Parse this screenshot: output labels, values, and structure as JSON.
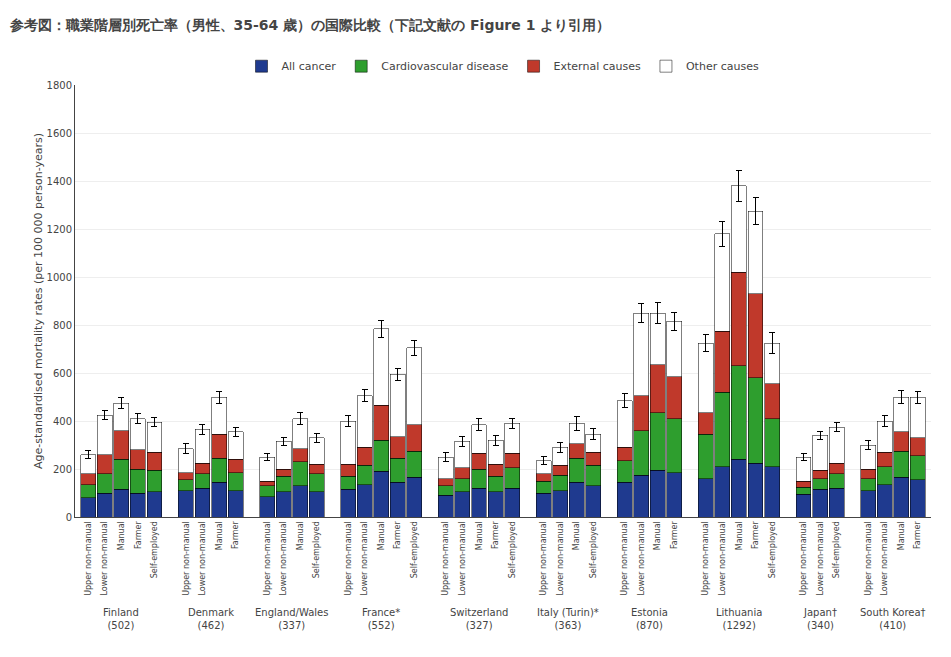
{
  "chart_data": {
    "type": "bar",
    "stacked": true,
    "title": "参考図：職業階層別死亡率（男性、35-64 歳）の国際比較（下記文献の Figure 1 より引用）",
    "ylabel": "Age-standardised mortality rates (per 100 000 person-years)",
    "groups": [
      {
        "name": "Finland",
        "label": "(502)",
        "categories": [
          "Upper non-manual",
          "Lower non-manual",
          "Manual",
          "Farmer",
          "Self-employed"
        ]
      },
      {
        "name": "Denmark",
        "label": "(462)",
        "categories": [
          "Upper non-manual",
          "Lower non-manual",
          "Manual",
          "Farmer"
        ]
      },
      {
        "name": "England/Wales",
        "label": "(337)",
        "categories": [
          "Upper non-manual",
          "Lower non-manual",
          "Manual",
          "Self-employed"
        ]
      },
      {
        "name": "France*",
        "label": "(552)",
        "categories": [
          "Upper non-manual",
          "Lower non-manual",
          "Manual",
          "Farmer",
          "Self-employed"
        ]
      },
      {
        "name": "Switzerland",
        "label": "(327)",
        "categories": [
          "Upper non-manual",
          "Lower non-manual",
          "Manual",
          "Farmer",
          "Self-employed"
        ]
      },
      {
        "name": "Italy (Turin)*",
        "label": "(363)",
        "categories": [
          "Upper non-manual",
          "Lower non-manual",
          "Manual",
          "Self-employed"
        ]
      },
      {
        "name": "Estonia",
        "label": "(870)",
        "categories": [
          "Upper non-manual",
          "Lower non-manual",
          "Manual",
          "Farmer"
        ]
      },
      {
        "name": "Lithuania",
        "label": "(1292)",
        "categories": [
          "Upper non-manual",
          "Lower non-manual",
          "Manual",
          "Farmer",
          "Self-employed"
        ]
      },
      {
        "name": "Japan†",
        "label": "(340)",
        "categories": [
          "Upper non-manual",
          "Lower non-manual",
          "Self-employed"
        ]
      },
      {
        "name": "South Korea†",
        "label": "(410)",
        "categories": [
          "Upper non-manual",
          "Lower non-manual",
          "Manual",
          "Farmer"
        ]
      }
    ],
    "series": [
      {
        "name": "All cancer",
        "color": "#1f3a8f",
        "values": [
          80,
          100,
          115,
          100,
          105,
          110,
          120,
          145,
          110,
          85,
          105,
          130,
          105,
          115,
          135,
          190,
          145,
          165,
          90,
          105,
          120,
          105,
          120,
          100,
          110,
          145,
          130,
          145,
          175,
          195,
          185,
          160,
          210,
          240,
          225,
          210,
          95,
          115,
          120,
          110,
          135,
          165,
          155
        ]
      },
      {
        "name": "Cardiovascular disease",
        "color": "#2e9e2e",
        "values": [
          55,
          80,
          125,
          100,
          90,
          45,
          60,
          100,
          75,
          45,
          65,
          100,
          75,
          55,
          80,
          130,
          100,
          110,
          40,
          55,
          80,
          65,
          85,
          50,
          65,
          100,
          85,
          90,
          185,
          240,
          225,
          185,
          310,
          390,
          355,
          200,
          30,
          45,
          60,
          50,
          75,
          110,
          100
        ]
      },
      {
        "name": "External causes",
        "color": "#c0392b",
        "values": [
          45,
          80,
          120,
          80,
          75,
          30,
          45,
          100,
          55,
          20,
          30,
          55,
          40,
          50,
          75,
          145,
          90,
          110,
          30,
          45,
          65,
          50,
          60,
          30,
          40,
          60,
          55,
          55,
          145,
          200,
          175,
          90,
          255,
          390,
          350,
          145,
          25,
          35,
          45,
          40,
          60,
          80,
          75
        ]
      },
      {
        "name": "Other causes",
        "color": "#ffffff",
        "values": [
          80,
          165,
          115,
          130,
          125,
          100,
          140,
          155,
          115,
          100,
          115,
          125,
          110,
          180,
          215,
          320,
          260,
          320,
          90,
          110,
          120,
          100,
          125,
          55,
          75,
          85,
          75,
          195,
          345,
          215,
          230,
          290,
          405,
          360,
          345,
          170,
          100,
          145,
          150,
          100,
          130,
          145,
          170
        ]
      }
    ],
    "errors": [
      18,
      20,
      22,
      20,
      18,
      20,
      22,
      25,
      18,
      15,
      18,
      25,
      18,
      22,
      25,
      35,
      25,
      30,
      18,
      20,
      25,
      20,
      22,
      18,
      22,
      30,
      22,
      30,
      40,
      42,
      38,
      35,
      52,
      65,
      58,
      42,
      15,
      18,
      20,
      18,
      22,
      28,
      25
    ],
    "ylim": [
      0,
      1800
    ],
    "yticks": [
      0,
      200,
      400,
      600,
      800,
      1000,
      1200,
      1400,
      1600,
      1800
    ],
    "grid": true,
    "legend": "top"
  }
}
